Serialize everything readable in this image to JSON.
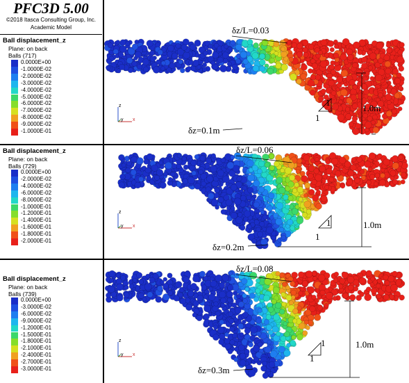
{
  "header": {
    "title": "PFC3D 5.00",
    "copyright": "©2018 Itasca Consulting Group, Inc.",
    "model": "Academic Model"
  },
  "panels": [
    {
      "legend_title": "Ball displacement_z",
      "plane": "Plane: on back",
      "balls": "Balls (717)",
      "labels": [
        "0.0000E+00",
        "-1.0000E-02",
        "-2.0000E-02",
        "-3.0000E-02",
        "-4.0000E-02",
        "-5.0000E-02",
        "-6.0000E-02",
        "-7.0000E-02",
        "-8.0000E-02",
        "-9.0000E-02",
        "-1.0000E-01"
      ],
      "ratio": "δz/L=0.03",
      "settlement": "δz=0.1m",
      "height": "1.0m",
      "slope_v": "1",
      "slope_h": "1"
    },
    {
      "legend_title": "Ball displacement_z",
      "plane": "Plane: on back",
      "balls": "Balls (729)",
      "labels": [
        "0.0000E+00",
        "-2.0000E-02",
        "-4.0000E-02",
        "-6.0000E-02",
        "-8.0000E-02",
        "-1.0000E-01",
        "-1.2000E-01",
        "-1.4000E-01",
        "-1.6000E-01",
        "-1.8000E-01",
        "-2.0000E-01"
      ],
      "ratio": "δz/L=0.06",
      "settlement": "δz=0.2m",
      "height": "1.0m",
      "slope_v": "1",
      "slope_h": "1"
    },
    {
      "legend_title": "Ball displacement_z",
      "plane": "Plane: on back",
      "balls": "Balls (739)",
      "labels": [
        "0.0000E+00",
        "-3.0000E-02",
        "-6.0000E-02",
        "-9.0000E-02",
        "-1.2000E-01",
        "-1.5000E-01",
        "-1.8000E-01",
        "-2.1000E-01",
        "-2.4000E-01",
        "-2.7000E-01",
        "-3.0000E-01"
      ],
      "ratio": "δz/L=0.08",
      "settlement": "δz=0.3m",
      "height": "1.0m",
      "slope_v": "1",
      "slope_h": "1"
    }
  ],
  "axis_labels": {
    "z": "z",
    "y": "y",
    "x": "x"
  },
  "colors": {
    "scale": [
      "#1a2ec8",
      "#1f4fe0",
      "#1e7ef0",
      "#1eb6ee",
      "#22d8c8",
      "#3cd86a",
      "#86de2a",
      "#d6e020",
      "#f0a020",
      "#f05018",
      "#e8201a"
    ]
  }
}
